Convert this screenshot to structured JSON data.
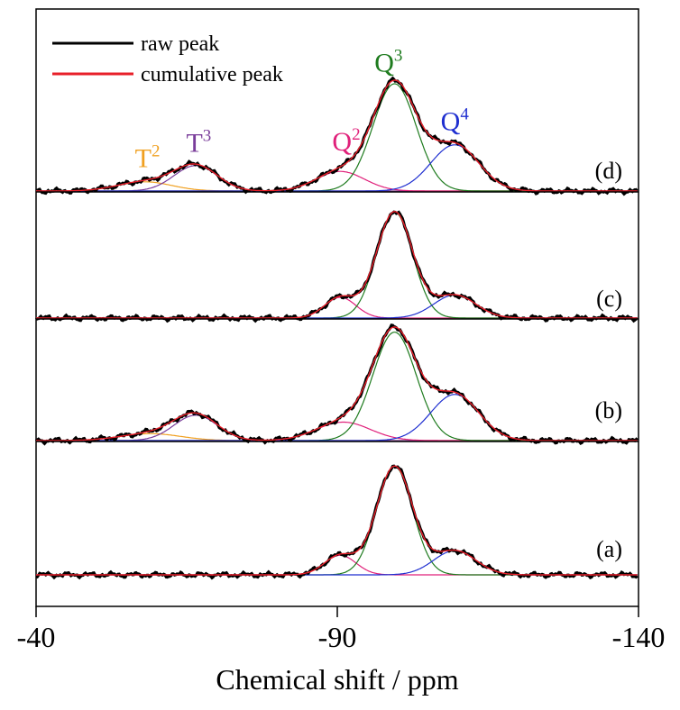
{
  "chart_data": {
    "type": "line",
    "title": "",
    "xlabel": "Chemical shift / ppm",
    "ylabel": "",
    "xlim": [
      -40,
      -140
    ],
    "x_ticks": [
      -40,
      -90,
      -140
    ],
    "x_tick_labels": [
      "-40",
      "-90",
      "-140"
    ],
    "grid": false,
    "legend": {
      "placement": "top-left",
      "entries": [
        {
          "label": "raw peak",
          "color": "#000000"
        },
        {
          "label": "cumulative peak",
          "color": "#e8202a"
        }
      ]
    },
    "component_colors": {
      "T2": "#f0a020",
      "T3": "#7a3d9a",
      "Q2": "#e0207a",
      "Q3": "#1e7b1e",
      "Q4": "#1f2fd0"
    },
    "panels": [
      {
        "label": "(d)",
        "annotations": [
          {
            "species": "T",
            "sup": "2",
            "x": -58.5,
            "color_key": "T2"
          },
          {
            "species": "T",
            "sup": "3",
            "x": -67.0,
            "color_key": "T3"
          },
          {
            "species": "Q",
            "sup": "2",
            "x": -91.5,
            "color_key": "Q2"
          },
          {
            "species": "Q",
            "sup": "3",
            "x": -98.5,
            "color_key": "Q3"
          },
          {
            "species": "Q",
            "sup": "4",
            "x": -109.5,
            "color_key": "Q4"
          }
        ],
        "components": [
          {
            "name": "T2",
            "center": -58.0,
            "height": 0.08,
            "sigma": 4.5
          },
          {
            "name": "T3",
            "center": -66.5,
            "height": 0.22,
            "sigma": 3.6
          },
          {
            "name": "Q2",
            "center": -90.5,
            "height": 0.17,
            "sigma": 4.0
          },
          {
            "name": "Q3",
            "center": -99.5,
            "height": 0.93,
            "sigma": 3.6
          },
          {
            "name": "Q4",
            "center": -109.5,
            "height": 0.4,
            "sigma": 4.0
          }
        ]
      },
      {
        "label": "(c)",
        "annotations": [],
        "components": [
          {
            "name": "Q2",
            "center": -90.5,
            "height": 0.18,
            "sigma": 2.6
          },
          {
            "name": "Q3",
            "center": -99.5,
            "height": 0.92,
            "sigma": 3.0
          },
          {
            "name": "Q4",
            "center": -109.5,
            "height": 0.2,
            "sigma": 3.5
          }
        ]
      },
      {
        "label": "(b)",
        "annotations": [],
        "components": [
          {
            "name": "T2",
            "center": -59.0,
            "height": 0.06,
            "sigma": 5.0
          },
          {
            "name": "T3",
            "center": -66.5,
            "height": 0.22,
            "sigma": 3.6
          },
          {
            "name": "Q2",
            "center": -91.0,
            "height": 0.16,
            "sigma": 4.5
          },
          {
            "name": "Q3",
            "center": -99.5,
            "height": 0.94,
            "sigma": 3.6
          },
          {
            "name": "Q4",
            "center": -109.5,
            "height": 0.4,
            "sigma": 4.0
          }
        ]
      },
      {
        "label": "(a)",
        "annotations": [],
        "components": [
          {
            "name": "Q2",
            "center": -90.5,
            "height": 0.17,
            "sigma": 2.6
          },
          {
            "name": "Q3",
            "center": -99.5,
            "height": 0.94,
            "sigma": 3.0
          },
          {
            "name": "Q4",
            "center": -109.5,
            "height": 0.21,
            "sigma": 3.5
          }
        ]
      }
    ]
  }
}
